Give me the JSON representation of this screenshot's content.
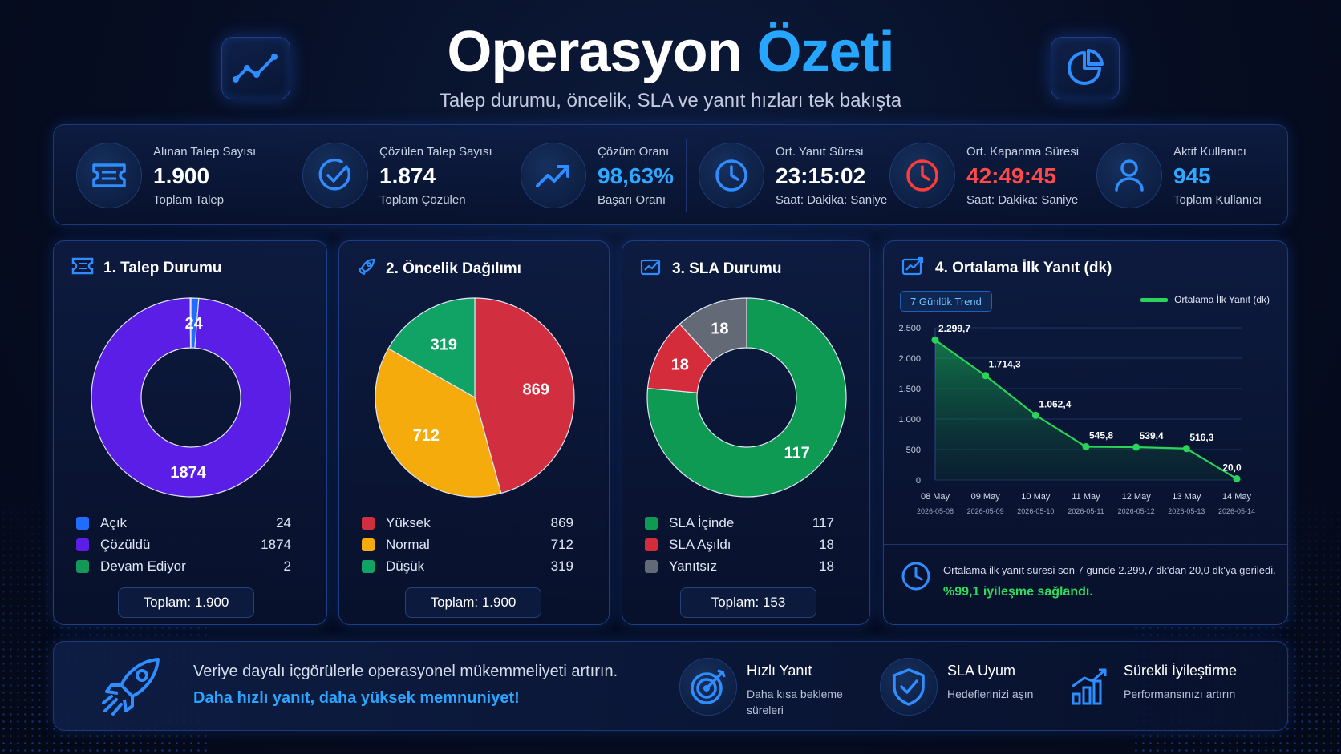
{
  "header": {
    "title_main": "Operasyon",
    "title_accent": "Özeti",
    "subtitle": "Talep durumu, öncelik, SLA ve yanıt hızları tek bakışta",
    "left_icon": "trend-line-icon",
    "right_icon": "pie-chart-icon"
  },
  "kpis": [
    {
      "label": "Alınan Talep Sayısı",
      "value": "1.900",
      "sub": "Toplam Talep",
      "icon": "ticket-icon",
      "color": "#ffffff"
    },
    {
      "label": "Çözülen Talep Sayısı",
      "value": "1.874",
      "sub": "Toplam Çözülen",
      "icon": "check-circle-icon",
      "color": "#ffffff"
    },
    {
      "label": "Çözüm Oranı",
      "value": "98,63%",
      "sub": "Başarı Oranı",
      "icon": "trend-up-icon",
      "color": "#2fa8ff"
    },
    {
      "label": "Ort. Yanıt Süresi",
      "value": "23:15:02",
      "sub": "Saat: Dakika: Saniye",
      "icon": "clock-icon",
      "color": "#ffffff"
    },
    {
      "label": "Ort. Kapanma Süresi",
      "value": "42:49:45",
      "sub": "Saat: Dakika: Saniye",
      "icon": "alarm-clock-icon",
      "color": "#ff4a4a"
    },
    {
      "label": "Aktif Kullanıcı",
      "value": "945",
      "sub": "Toplam Kullanıcı",
      "icon": "user-icon",
      "color": "#2fa8ff"
    }
  ],
  "panels": {
    "status": {
      "title": "1. Talep Durumu",
      "total": "Toplam: 1.900",
      "items": [
        {
          "label": "Açık",
          "value": 24,
          "color": "#1f6cff"
        },
        {
          "label": "Çözüldü",
          "value": 1874,
          "color": "#5a1ee6"
        },
        {
          "label": "Devam Ediyor",
          "value": 2,
          "color": "#14985a"
        }
      ]
    },
    "priority": {
      "title": "2. Öncelik Dağılımı",
      "total": "Toplam: 1.900",
      "items": [
        {
          "label": "Yüksek",
          "value": 869,
          "color": "#d12f3f"
        },
        {
          "label": "Normal",
          "value": 712,
          "color": "#f5ab0b"
        },
        {
          "label": "Düşük",
          "value": 319,
          "color": "#11a266"
        }
      ]
    },
    "sla": {
      "title": "3. SLA Durumu",
      "total": "Toplam: 153",
      "items": [
        {
          "label": "SLA İçinde",
          "value": 117,
          "color": "#0f9a53"
        },
        {
          "label": "SLA Aşıldı",
          "value": 18,
          "color": "#d52c3c"
        },
        {
          "label": "Yanıtsız",
          "value": 18,
          "color": "#636a76"
        }
      ]
    },
    "response": {
      "title": "4. Ortalama İlk Yanıt (dk)",
      "badge": "7 Günlük Trend",
      "legend": "Ortalama İlk Yanıt (dk)",
      "insight": "Ortalama ilk yanıt süresi son 7 günde 2.299,7 dk'dan 20,0 dk'ya geriledi.",
      "insight_strong": "%99,1 iyileşme sağlandı."
    }
  },
  "chart_data": [
    {
      "type": "pie",
      "title": "1. Talep Durumu",
      "categories": [
        "Açık",
        "Çözüldü",
        "Devam Ediyor"
      ],
      "values": [
        24,
        1874,
        2
      ]
    },
    {
      "type": "pie",
      "title": "2. Öncelik Dağılımı",
      "categories": [
        "Yüksek",
        "Normal",
        "Düşük"
      ],
      "values": [
        869,
        712,
        319
      ]
    },
    {
      "type": "pie",
      "title": "3. SLA Durumu",
      "categories": [
        "SLA İçinde",
        "SLA Aşıldı",
        "Yanıtsız"
      ],
      "values": [
        117,
        18,
        18
      ]
    },
    {
      "type": "area",
      "title": "4. Ortalama İlk Yanıt (dk)",
      "x": [
        "08 May",
        "09 May",
        "10 May",
        "11 May",
        "12 May",
        "13 May",
        "14 May"
      ],
      "x_sub": [
        "2026-05-08",
        "2026-05-09",
        "2026-05-10",
        "2026-05-11",
        "2026-05-12",
        "2026-05-13",
        "2026-05-14"
      ],
      "series": [
        {
          "name": "Ortalama İlk Yanıt (dk)",
          "values": [
            2299.7,
            1714.3,
            1062.4,
            545.8,
            539.4,
            516.3,
            20.0
          ],
          "labels": [
            "2.299,7",
            "1.714,3",
            "1.062,4",
            "545,8",
            "539,4",
            "516,3",
            "20,0"
          ]
        }
      ],
      "ylim": [
        0,
        2500
      ],
      "yticks": [
        0,
        500,
        1000,
        1500,
        2000,
        2500
      ],
      "ytick_labels": [
        "0",
        "500",
        "1.000",
        "1.500",
        "2.000",
        "2.500"
      ],
      "grid": true,
      "legend": "top-right"
    }
  ],
  "footer": {
    "line1": "Veriye dayalı içgörülerle operasyonel mükemmeliyeti artırın.",
    "line2": "Daha hızlı yanıt, daha yüksek memnuniyet!",
    "features": [
      {
        "title": "Hızlı Yanıt",
        "sub": "Daha kısa bekleme süreleri",
        "icon": "target-icon"
      },
      {
        "title": "SLA Uyum",
        "sub": "Hedeflerinizi aşın",
        "icon": "shield-check-icon"
      },
      {
        "title": "Sürekli İyileştirme",
        "sub": "Performansınızı artırın",
        "icon": "bar-growth-icon"
      }
    ]
  }
}
